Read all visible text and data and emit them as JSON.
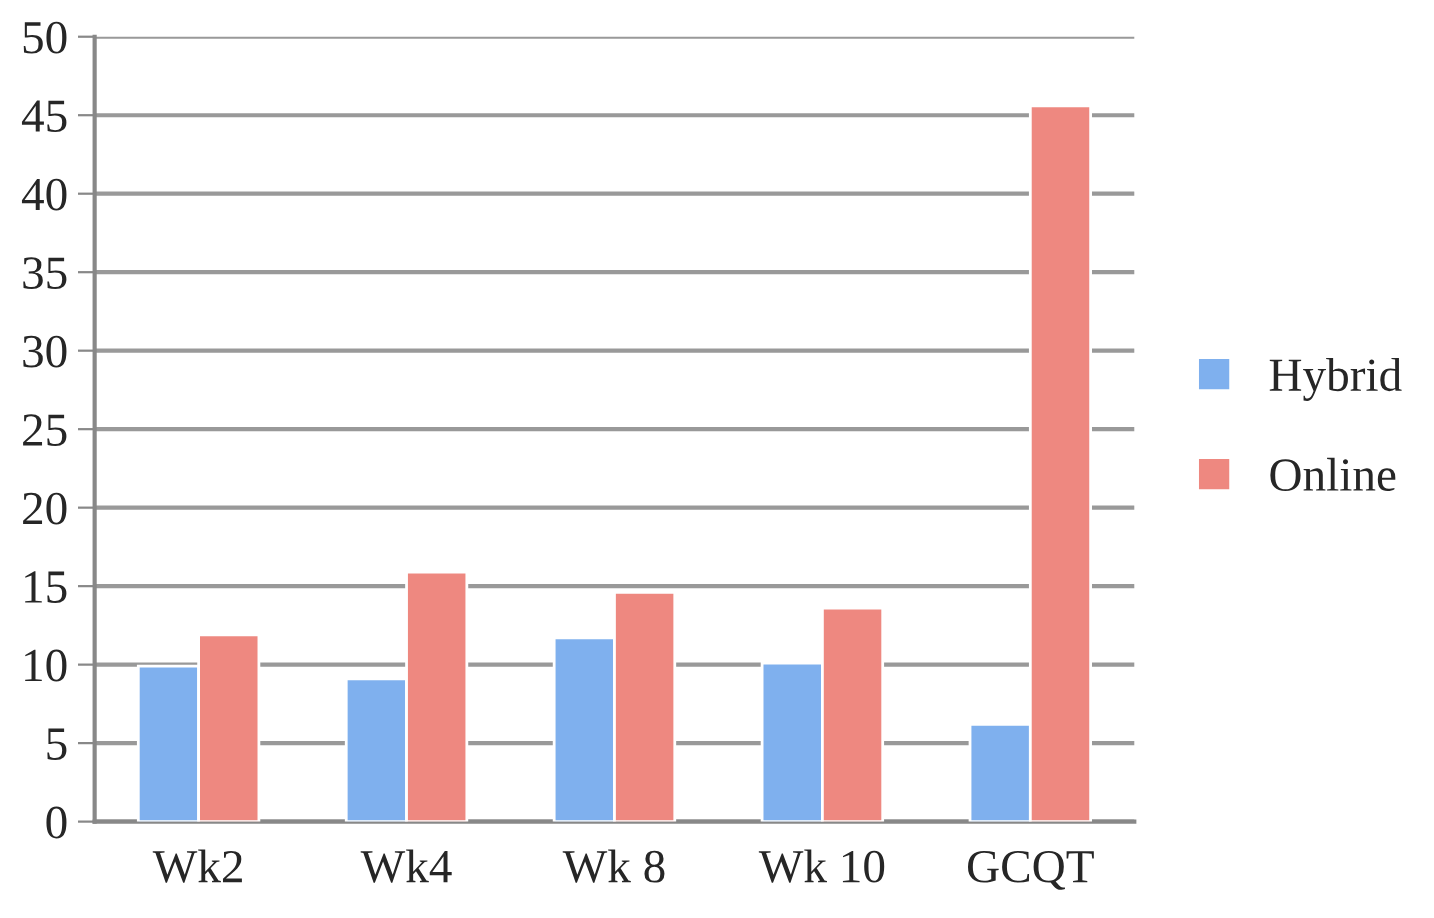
{
  "chart_data": {
    "type": "bar",
    "categories": [
      "Wk2",
      "Wk4",
      "Wk 8",
      "Wk 10",
      "GCQT"
    ],
    "series": [
      {
        "name": "Hybrid",
        "color": "#7fb0ee",
        "values": [
          9.9,
          9.1,
          11.7,
          10.1,
          6.2
        ]
      },
      {
        "name": "Online",
        "color": "#ee8880",
        "values": [
          11.9,
          15.9,
          14.6,
          13.6,
          45.6
        ]
      }
    ],
    "ylim": [
      0,
      50
    ],
    "yticks": [
      0,
      5,
      10,
      15,
      20,
      25,
      30,
      35,
      40,
      45,
      50
    ],
    "grid": "y",
    "legend": "right"
  }
}
